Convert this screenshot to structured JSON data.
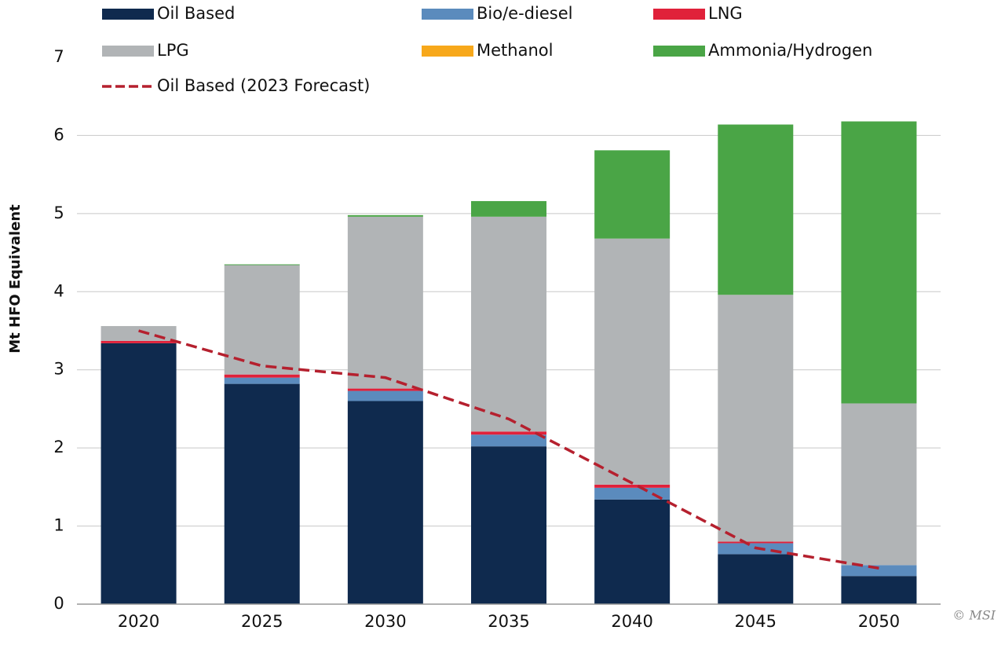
{
  "chart_data": {
    "type": "stacked-bar",
    "y_axis_label": "Mt HFO Equivalent",
    "credit": "© MSI",
    "categories": [
      "2020",
      "2025",
      "2030",
      "2035",
      "2040",
      "2045",
      "2050"
    ],
    "series": [
      {
        "name": "Oil Based",
        "color": "#0f2a4e",
        "values": [
          3.34,
          2.82,
          2.6,
          2.02,
          1.34,
          0.64,
          0.36
        ]
      },
      {
        "name": "Bio/e-diesel",
        "color": "#5b8bbd",
        "values": [
          0,
          0.08,
          0.13,
          0.15,
          0.15,
          0.14,
          0.14
        ]
      },
      {
        "name": "LNG",
        "color": "#e0213a",
        "values": [
          0.03,
          0.04,
          0.03,
          0.04,
          0.04,
          0.02,
          0
        ]
      },
      {
        "name": "LPG",
        "color": "#b1b4b6",
        "values": [
          0.19,
          1.4,
          2.2,
          2.75,
          3.15,
          3.16,
          2.07
        ]
      },
      {
        "name": "Methanol",
        "color": "#f7a81b",
        "values": [
          0,
          0,
          0,
          0,
          0,
          0,
          0
        ]
      },
      {
        "name": "Ammonia/Hydrogen",
        "color": "#4aa546",
        "values": [
          0,
          0.01,
          0.02,
          0.2,
          1.13,
          2.18,
          3.61
        ]
      }
    ],
    "line": {
      "name": "Oil Based (2023 Forecast)",
      "color": "#b5202e",
      "values": [
        3.5,
        3.05,
        2.9,
        2.37,
        1.55,
        0.72,
        0.46
      ]
    },
    "ylim": [
      0,
      7
    ],
    "yticks": [
      0,
      1,
      2,
      3,
      4,
      5,
      6,
      7
    ],
    "grid": true
  }
}
